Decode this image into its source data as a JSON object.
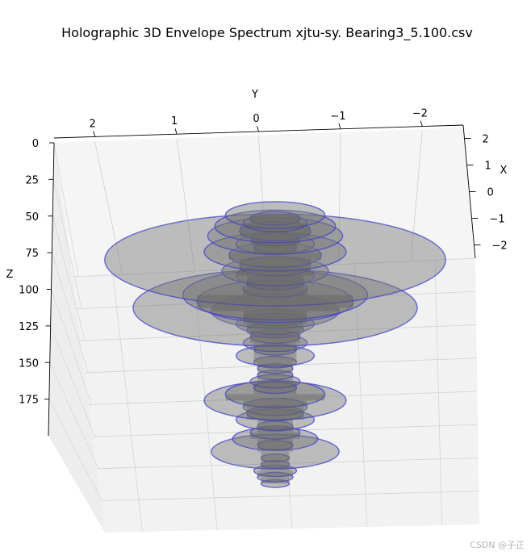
{
  "watermark": "CSDN @子正",
  "chart_data": {
    "type": "3d-surface",
    "title": "Holographic 3D Envelope Spectrum  xjtu-sy. Bearing3_5.100.csv",
    "xlabel": "X",
    "ylabel": "Y",
    "zlabel": "Z",
    "xlim": [
      -2.5,
      2.5
    ],
    "ylim": [
      -2.5,
      2.5
    ],
    "zlim": [
      0,
      200
    ],
    "z_inverted": true,
    "x_ticks": [
      {
        "value": 2,
        "label": "2"
      },
      {
        "value": 1,
        "label": "1"
      },
      {
        "value": 0,
        "label": "0"
      },
      {
        "value": -1,
        "label": "−1"
      },
      {
        "value": -2,
        "label": "−2"
      }
    ],
    "y_ticks": [
      {
        "value": 2,
        "label": "2"
      },
      {
        "value": 1,
        "label": "1"
      },
      {
        "value": 0,
        "label": "0"
      },
      {
        "value": -1,
        "label": "−1"
      },
      {
        "value": -2,
        "label": "−2"
      }
    ],
    "z_ticks": [
      {
        "value": 0,
        "label": "0"
      },
      {
        "value": 25,
        "label": "25"
      },
      {
        "value": 50,
        "label": "50"
      },
      {
        "value": 75,
        "label": "75"
      },
      {
        "value": 100,
        "label": "100"
      },
      {
        "value": 125,
        "label": "125"
      },
      {
        "value": 150,
        "label": "150"
      },
      {
        "value": 175,
        "label": "175"
      }
    ],
    "grid": true,
    "surface_color": "#777777",
    "edge_color": "#4040cc",
    "rings": [
      {
        "z": 20,
        "r": 0.7
      },
      {
        "z": 22,
        "r": 0.35
      },
      {
        "z": 25,
        "r": 0.45
      },
      {
        "z": 27,
        "r": 0.85
      },
      {
        "z": 30,
        "r": 0.5
      },
      {
        "z": 33,
        "r": 0.95
      },
      {
        "z": 35,
        "r": 0.35
      },
      {
        "z": 38,
        "r": 0.55
      },
      {
        "z": 40,
        "r": 0.3
      },
      {
        "z": 43,
        "r": 1.0
      },
      {
        "z": 45,
        "r": 0.65
      },
      {
        "z": 48,
        "r": 2.4
      },
      {
        "z": 52,
        "r": 0.5
      },
      {
        "z": 55,
        "r": 0.75
      },
      {
        "z": 58,
        "r": 0.55
      },
      {
        "z": 62,
        "r": 0.4
      },
      {
        "z": 66,
        "r": 0.45
      },
      {
        "z": 70,
        "r": 1.3
      },
      {
        "z": 74,
        "r": 1.1
      },
      {
        "z": 78,
        "r": 2.0
      },
      {
        "z": 80,
        "r": 0.9
      },
      {
        "z": 84,
        "r": 0.45
      },
      {
        "z": 88,
        "r": 0.55
      },
      {
        "z": 92,
        "r": 0.4
      },
      {
        "z": 96,
        "r": 0.35
      },
      {
        "z": 100,
        "r": 0.45
      },
      {
        "z": 104,
        "r": 0.3
      },
      {
        "z": 108,
        "r": 0.55
      },
      {
        "z": 112,
        "r": 0.3
      },
      {
        "z": 116,
        "r": 0.25
      },
      {
        "z": 120,
        "r": 0.25
      },
      {
        "z": 124,
        "r": 0.35
      },
      {
        "z": 128,
        "r": 0.3
      },
      {
        "z": 132,
        "r": 0.7
      },
      {
        "z": 136,
        "r": 1.0
      },
      {
        "z": 140,
        "r": 0.45
      },
      {
        "z": 144,
        "r": 0.4
      },
      {
        "z": 148,
        "r": 0.55
      },
      {
        "z": 152,
        "r": 0.25
      },
      {
        "z": 156,
        "r": 0.35
      },
      {
        "z": 160,
        "r": 0.6
      },
      {
        "z": 164,
        "r": 0.25
      },
      {
        "z": 168,
        "r": 0.9
      },
      {
        "z": 172,
        "r": 0.2
      },
      {
        "z": 176,
        "r": 0.2
      },
      {
        "z": 180,
        "r": 0.3
      },
      {
        "z": 184,
        "r": 0.25
      },
      {
        "z": 188,
        "r": 0.2
      }
    ]
  }
}
